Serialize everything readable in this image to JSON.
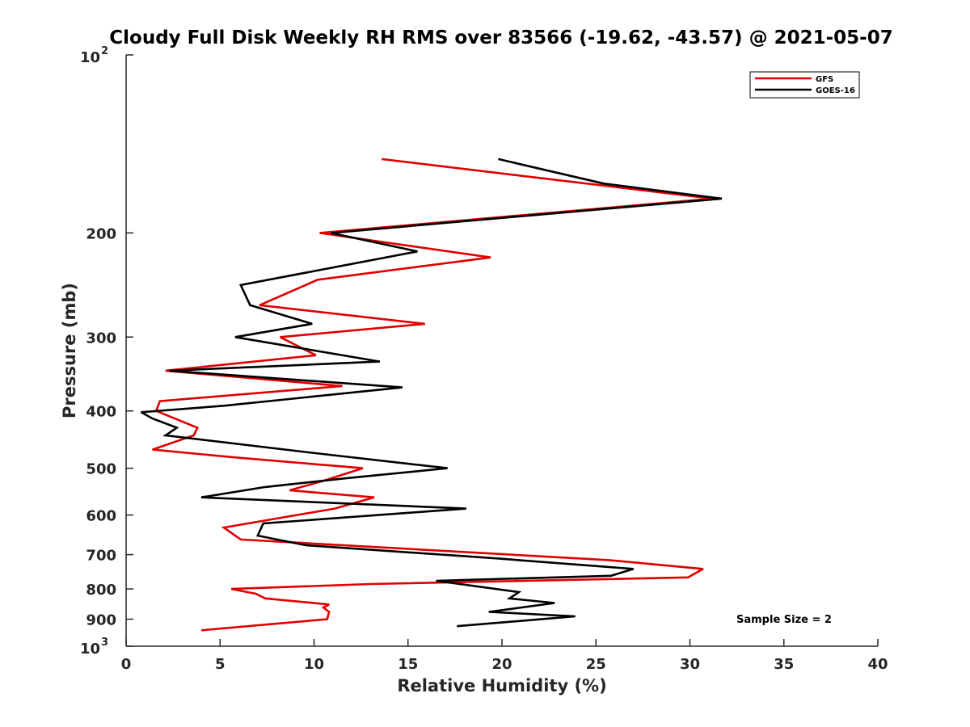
{
  "chart_data": {
    "type": "line",
    "title": "Cloudy Full Disk Weekly RH RMS over 83566 (-19.62, -43.57) @ 2021-05-07",
    "xlabel": "Relative Humidity (%)",
    "ylabel": "Pressure (mb)",
    "xlim": [
      0,
      40
    ],
    "ylim": [
      100,
      1000
    ],
    "y_scale": "log",
    "y_reversed": true,
    "grid": false,
    "legend_position": "top-right",
    "x_ticks": [
      "0",
      "5",
      "10",
      "15",
      "20",
      "25",
      "30",
      "35",
      "40"
    ],
    "y_ticks": [
      {
        "value": 100,
        "base": "10",
        "exp": "2"
      },
      {
        "value": 200,
        "label": "200"
      },
      {
        "value": 300,
        "label": "300"
      },
      {
        "value": 400,
        "label": "400"
      },
      {
        "value": 500,
        "label": "500"
      },
      {
        "value": 600,
        "label": "600"
      },
      {
        "value": 700,
        "label": "700"
      },
      {
        "value": 800,
        "label": "800"
      },
      {
        "value": 900,
        "label": "900"
      },
      {
        "value": 1000,
        "base": "10",
        "exp": "3"
      }
    ],
    "series": [
      {
        "name": "GFS",
        "color": "#e00000",
        "points": [
          [
            13.6,
            150
          ],
          [
            31.2,
            175
          ],
          [
            10.3,
            200
          ],
          [
            19.4,
            220
          ],
          [
            10.2,
            240
          ],
          [
            7.1,
            265
          ],
          [
            15.9,
            285
          ],
          [
            8.2,
            300
          ],
          [
            10.1,
            322
          ],
          [
            2.1,
            342
          ],
          [
            11.5,
            363
          ],
          [
            1.8,
            385
          ],
          [
            1.6,
            400
          ],
          [
            3.8,
            427
          ],
          [
            3.6,
            440
          ],
          [
            1.4,
            465
          ],
          [
            6.0,
            480
          ],
          [
            12.6,
            500
          ],
          [
            10.5,
            525
          ],
          [
            8.7,
            545
          ],
          [
            13.2,
            560
          ],
          [
            11.1,
            585
          ],
          [
            5.2,
            630
          ],
          [
            6.1,
            660
          ],
          [
            25.7,
            715
          ],
          [
            30.7,
            740
          ],
          [
            29.9,
            765
          ],
          [
            13.0,
            785
          ],
          [
            5.6,
            800
          ],
          [
            6.9,
            815
          ],
          [
            7.4,
            830
          ],
          [
            10.8,
            850
          ],
          [
            10.5,
            860
          ],
          [
            10.8,
            875
          ],
          [
            10.7,
            900
          ],
          [
            4.0,
            940
          ]
        ]
      },
      {
        "name": "GOES-16",
        "color": "#000000",
        "points": [
          [
            19.8,
            150
          ],
          [
            25.4,
            165
          ],
          [
            31.7,
            175
          ],
          [
            10.9,
            200
          ],
          [
            15.5,
            215
          ],
          [
            6.1,
            245
          ],
          [
            6.6,
            265
          ],
          [
            9.9,
            285
          ],
          [
            5.8,
            300
          ],
          [
            13.5,
            330
          ],
          [
            2.3,
            342
          ],
          [
            14.7,
            365
          ],
          [
            5.2,
            392
          ],
          [
            0.8,
            402
          ],
          [
            1.4,
            412
          ],
          [
            2.7,
            427
          ],
          [
            2.1,
            440
          ],
          [
            3.4,
            445
          ],
          [
            9.7,
            470
          ],
          [
            17.1,
            500
          ],
          [
            11.7,
            520
          ],
          [
            7.4,
            538
          ],
          [
            4.0,
            560
          ],
          [
            18.1,
            585
          ],
          [
            7.3,
            620
          ],
          [
            7.0,
            650
          ],
          [
            9.6,
            675
          ],
          [
            19.6,
            710
          ],
          [
            27.0,
            740
          ],
          [
            25.8,
            760
          ],
          [
            16.5,
            775
          ],
          [
            20.9,
            810
          ],
          [
            20.4,
            830
          ],
          [
            22.8,
            845
          ],
          [
            19.3,
            875
          ],
          [
            23.9,
            890
          ],
          [
            17.6,
            925
          ]
        ]
      }
    ],
    "annotation": "Sample Size = 2"
  }
}
